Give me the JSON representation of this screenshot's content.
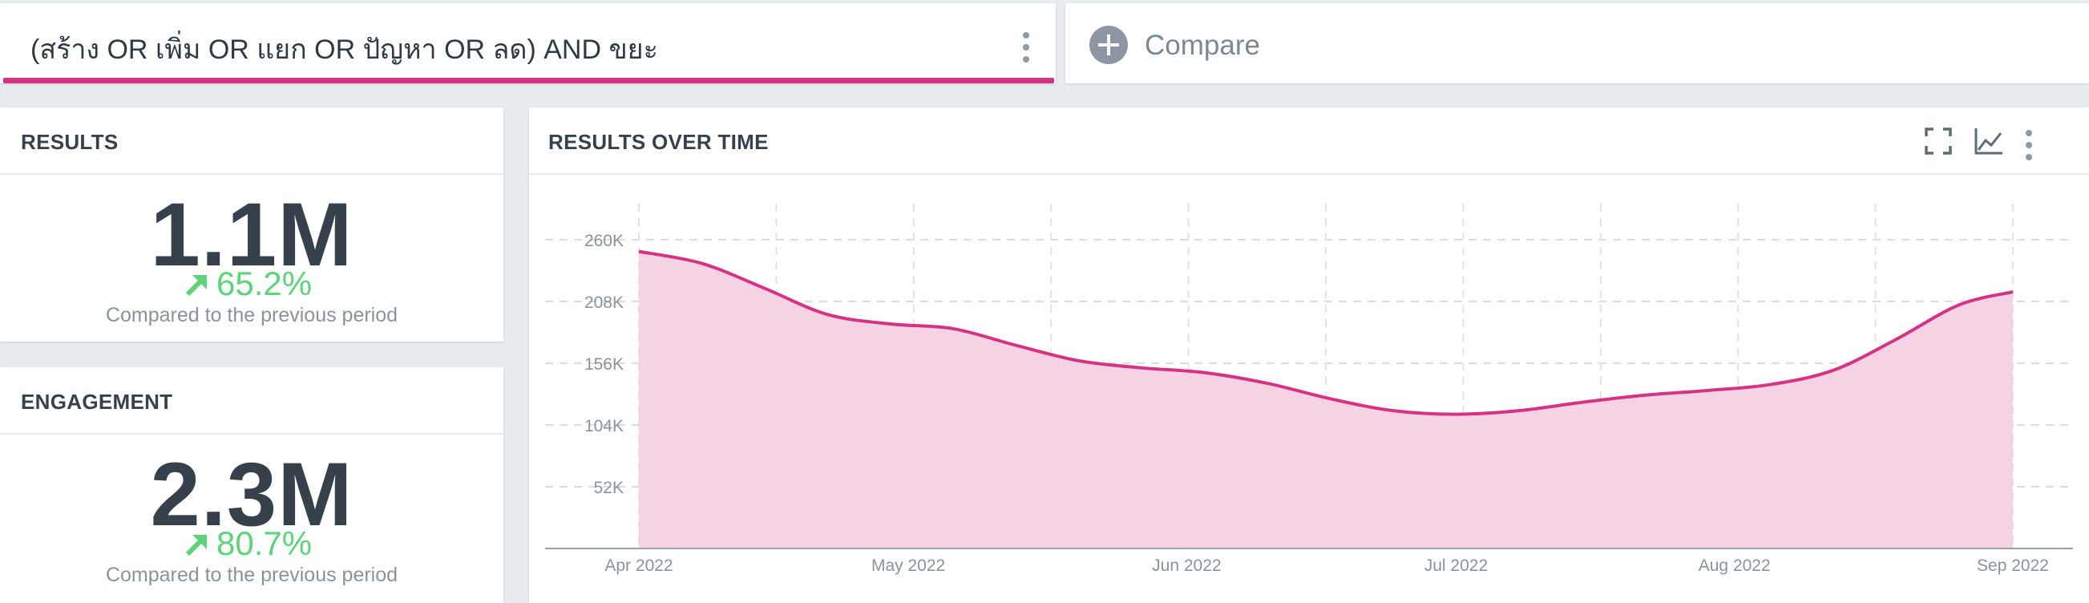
{
  "query": {
    "text": "(สร้าง OR เพิ่ม OR แยก OR ปัญหา OR ลด) AND ขยะ",
    "accent": "#d63384"
  },
  "compare": {
    "label": "Compare",
    "icon": "plus-circle-icon"
  },
  "stats": [
    {
      "title": "RESULTS",
      "value": "1.1M",
      "change": "65.2%",
      "trend": "up",
      "note": "Compared to the previous period"
    },
    {
      "title": "ENGAGEMENT",
      "value": "2.3M",
      "change": "80.7%",
      "trend": "up",
      "note": "Compared to the previous period"
    }
  ],
  "chart_card": {
    "title": "RESULTS OVER TIME",
    "tools": [
      "fullscreen-icon",
      "line-chart-icon",
      "more-vert-icon"
    ]
  },
  "chart_data": {
    "type": "area",
    "title": "RESULTS OVER TIME",
    "xlabel": "",
    "ylabel": "",
    "ylim": [
      0,
      270000
    ],
    "yticks": [
      52000,
      104000,
      156000,
      208000,
      260000
    ],
    "ytick_labels": [
      "52K",
      "104K",
      "156K",
      "208K",
      "260K"
    ],
    "xtick_labels": [
      "Apr 2022",
      "May 2022",
      "Jun 2022",
      "Jul 2022",
      "Aug 2022",
      "Sep 2022"
    ],
    "xtick_dates": [
      "2022-04-01",
      "2022-05-01",
      "2022-06-01",
      "2022-07-01",
      "2022-08-01",
      "2022-09-01"
    ],
    "x": [
      "2022-04-01",
      "2022-04-08",
      "2022-04-15",
      "2022-04-22",
      "2022-04-29",
      "2022-05-06",
      "2022-05-13",
      "2022-05-20",
      "2022-05-27",
      "2022-06-03",
      "2022-06-10",
      "2022-06-17",
      "2022-06-24",
      "2022-07-01",
      "2022-07-08",
      "2022-07-15",
      "2022-07-22",
      "2022-07-29",
      "2022-08-05",
      "2022-08-12",
      "2022-08-19",
      "2022-08-26",
      "2022-09-01"
    ],
    "values": [
      250000,
      240000,
      219000,
      197000,
      189000,
      185000,
      171000,
      158000,
      152000,
      148000,
      139000,
      126000,
      116000,
      113000,
      116000,
      123000,
      129000,
      133000,
      138000,
      150000,
      176000,
      205000,
      216000
    ],
    "grid": true,
    "legend": "none",
    "color": "#d63384",
    "fill": "#f5d3e4"
  }
}
